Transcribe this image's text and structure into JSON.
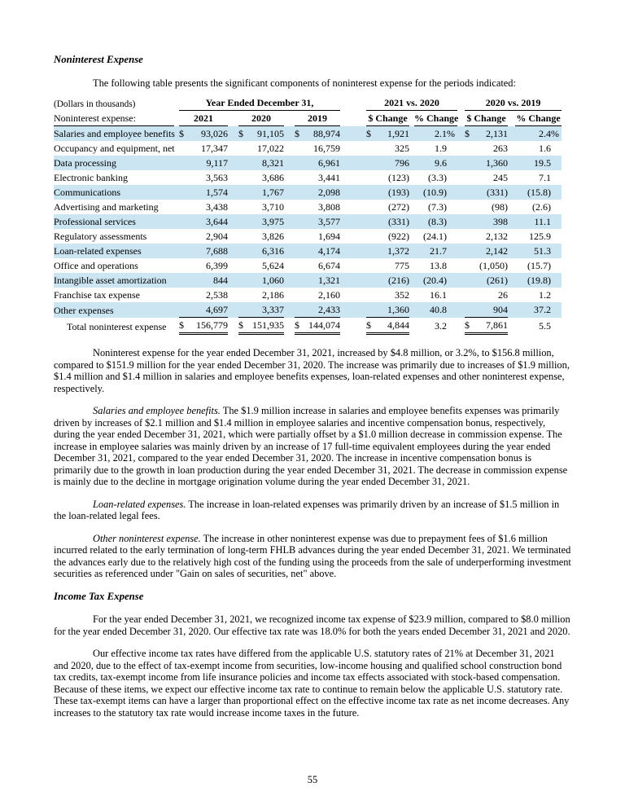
{
  "document": {
    "section_heading": "Noninterest Expense",
    "intro": "The following table presents the significant components of noninterest expense for the periods indicated:",
    "income_tax_heading": "Income Tax Expense",
    "page_number": "55"
  },
  "table": {
    "units_label": "(Dollars in thousands)",
    "row_header": "Noninterest expense:",
    "dollar_sign": "$",
    "percent_sign": "%",
    "shade_color": "#cbe5f2",
    "span_headers": {
      "years": "Year Ended December 31,",
      "vs1": "2021 vs. 2020",
      "vs2": "2020 vs. 2019"
    },
    "col_headers": {
      "y2021": "2021",
      "y2020": "2020",
      "y2019": "2019",
      "dchange1": "$ Change",
      "pchange1": "% Change",
      "dchange2": "$ Change",
      "pchange2": "% Change"
    },
    "rows": [
      {
        "label": "Salaries and employee benefits",
        "shaded": true,
        "wrap": true,
        "money": true,
        "pct": true,
        "values": [
          "93,026",
          "91,105",
          "88,974",
          "1,921",
          "2.1",
          "2,131",
          "2.4"
        ]
      },
      {
        "label": "Occupancy and equipment, net",
        "shaded": false,
        "wrap": true,
        "money": false,
        "pct": false,
        "values": [
          "17,347",
          "17,022",
          "16,759",
          "325",
          "1.9",
          "263",
          "1.6"
        ]
      },
      {
        "label": "Data processing",
        "shaded": true,
        "wrap": false,
        "money": false,
        "pct": false,
        "values": [
          "9,117",
          "8,321",
          "6,961",
          "796",
          "9.6",
          "1,360",
          "19.5"
        ]
      },
      {
        "label": "Electronic banking",
        "shaded": false,
        "wrap": false,
        "money": false,
        "pct": false,
        "values": [
          "3,563",
          "3,686",
          "3,441",
          "(123)",
          "(3.3)",
          "245",
          "7.1"
        ]
      },
      {
        "label": "Communications",
        "shaded": true,
        "wrap": false,
        "money": false,
        "pct": false,
        "values": [
          "1,574",
          "1,767",
          "2,098",
          "(193)",
          "(10.9)",
          "(331)",
          "(15.8)"
        ]
      },
      {
        "label": "Advertising and marketing",
        "shaded": false,
        "wrap": false,
        "money": false,
        "pct": false,
        "values": [
          "3,438",
          "3,710",
          "3,808",
          "(272)",
          "(7.3)",
          "(98)",
          "(2.6)"
        ]
      },
      {
        "label": "Professional services",
        "shaded": true,
        "wrap": false,
        "money": false,
        "pct": false,
        "values": [
          "3,644",
          "3,975",
          "3,577",
          "(331)",
          "(8.3)",
          "398",
          "11.1"
        ]
      },
      {
        "label": "Regulatory assessments",
        "shaded": false,
        "wrap": false,
        "money": false,
        "pct": false,
        "values": [
          "2,904",
          "3,826",
          "1,694",
          "(922)",
          "(24.1)",
          "2,132",
          "125.9"
        ]
      },
      {
        "label": "Loan-related expenses",
        "shaded": true,
        "wrap": false,
        "money": false,
        "pct": false,
        "values": [
          "7,688",
          "6,316",
          "4,174",
          "1,372",
          "21.7",
          "2,142",
          "51.3"
        ]
      },
      {
        "label": "Office and operations",
        "shaded": false,
        "wrap": false,
        "money": false,
        "pct": false,
        "values": [
          "6,399",
          "5,624",
          "6,674",
          "775",
          "13.8",
          "(1,050)",
          "(15.7)"
        ]
      },
      {
        "label": "Intangible asset amortization",
        "shaded": true,
        "wrap": false,
        "money": false,
        "pct": false,
        "values": [
          "844",
          "1,060",
          "1,321",
          "(216)",
          "(20.4)",
          "(261)",
          "(19.8)"
        ]
      },
      {
        "label": "Franchise tax expense",
        "shaded": false,
        "wrap": false,
        "money": false,
        "pct": false,
        "values": [
          "2,538",
          "2,186",
          "2,160",
          "352",
          "16.1",
          "26",
          "1.2"
        ]
      },
      {
        "label": "Other expenses",
        "shaded": true,
        "wrap": false,
        "money": false,
        "pct": false,
        "values": [
          "4,697",
          "3,337",
          "2,433",
          "1,360",
          "40.8",
          "904",
          "37.2"
        ]
      }
    ],
    "total_row": {
      "label": "Total noninterest expense",
      "money": true,
      "pct": false,
      "values": [
        "156,779",
        "151,935",
        "144,074",
        "4,844",
        "3.2",
        "7,861",
        "5.5"
      ]
    }
  },
  "paragraphs": [
    {
      "lead": "",
      "text": "Noninterest expense for the year ended December 31, 2021, increased by $4.8 million, or 3.2%, to $156.8 million, compared to $151.9 million for the year ended December 31, 2020. The increase was primarily due to increases of $1.9 million, $1.4 million and $1.4 million in salaries and employee benefits expenses, loan-related expenses and other noninterest expense, respectively."
    },
    {
      "lead": "Salaries and employee benefits.",
      "text": " The $1.9 million increase in salaries and employee benefits expenses was primarily driven by increases of $2.1 million and $1.4 million in employee salaries and incentive compensation bonus, respectively, during the year ended December 31, 2021, which were partially offset by a $1.0 million decrease in commission expense. The increase in employee salaries was mainly driven by an increase of 17 full-time equivalent employees during the year ended December 31, 2021, compared to the year ended December 31, 2020. The increase in incentive compensation bonus is primarily due to the growth in loan production during the year ended December 31, 2021. The decrease in commission expense is mainly due to the decline in mortgage origination volume during the year ended December 31, 2021."
    },
    {
      "lead": "Loan-related expenses.",
      "text": " The increase in loan-related expenses was primarily driven by an increase of $1.5 million in the loan-related legal fees."
    },
    {
      "lead": "Other noninterest expense.",
      "text": " The increase in other noninterest expense was due to prepayment fees of $1.6 million incurred related to the early termination of long-term FHLB advances during the year ended December 31, 2021. We terminated the advances early due to the relatively high cost of the funding using the proceeds from the sale of underperforming investment securities as referenced under \"Gain on sales of securities, net\" above."
    }
  ],
  "income_tax_paragraphs": [
    {
      "text": "For the year ended December 31, 2021, we recognized income tax expense of $23.9 million, compared to $8.0 million for the year ended December 31, 2020. Our effective tax rate was 18.0% for both the years ended December 31, 2021 and 2020."
    },
    {
      "text": "Our effective income tax rates have differed from the applicable U.S. statutory rates of 21% at December 31, 2021 and 2020, due to the effect of tax-exempt income from securities, low-income housing and qualified school construction bond tax credits, tax-exempt income from life insurance policies and income tax effects associated with stock-based compensation. Because of these items, we expect our effective income tax rate to continue to remain below the applicable U.S. statutory rate. These tax-exempt items can have a larger than proportional effect on the effective income tax rate as net income decreases. Any increases to the statutory tax rate would increase income taxes in the future."
    }
  ]
}
